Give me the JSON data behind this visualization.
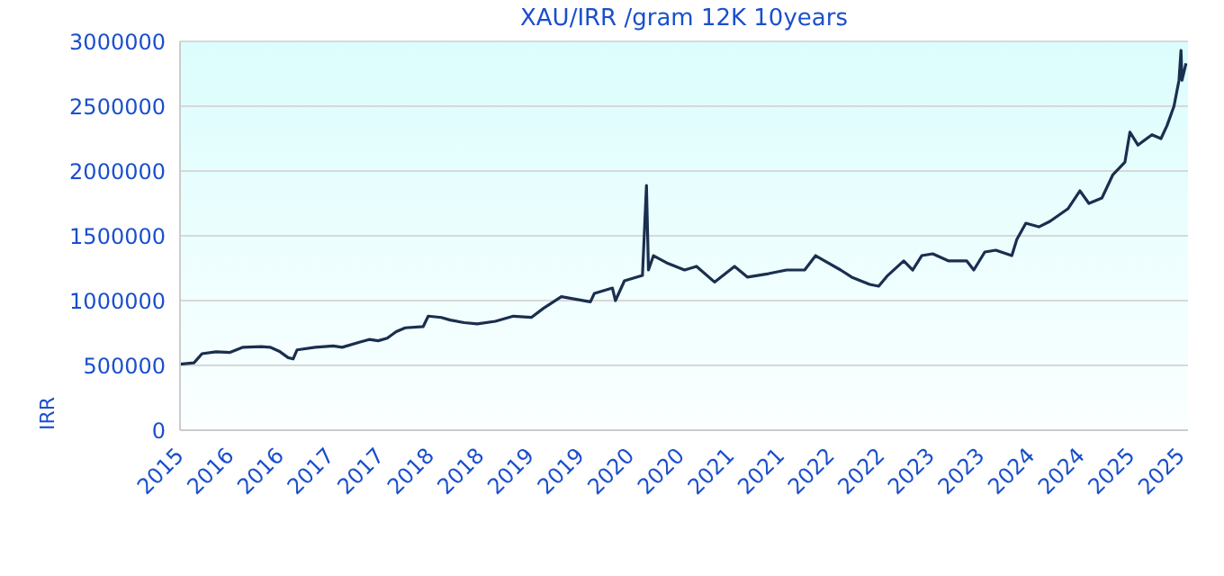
{
  "chart_data": {
    "type": "line",
    "title": "XAU/IRR /gram 12K 10years",
    "ylabel": "IRR",
    "x": [
      2015.5,
      2015.64,
      2015.72,
      2015.86,
      2016.0,
      2016.13,
      2016.31,
      2016.4,
      2016.49,
      2016.58,
      2016.63,
      2016.67,
      2016.85,
      2017.03,
      2017.12,
      2017.3,
      2017.39,
      2017.48,
      2017.57,
      2017.66,
      2017.75,
      2017.93,
      2017.98,
      2018.11,
      2018.2,
      2018.34,
      2018.47,
      2018.65,
      2018.83,
      2019.01,
      2019.13,
      2019.31,
      2019.46,
      2019.6,
      2019.64,
      2019.82,
      2019.85,
      2019.94,
      2020.12,
      2020.16,
      2020.18,
      2020.23,
      2020.36,
      2020.54,
      2020.66,
      2020.84,
      2021.04,
      2021.17,
      2021.38,
      2021.56,
      2021.74,
      2021.85,
      2021.94,
      2022.1,
      2022.21,
      2022.39,
      2022.48,
      2022.57,
      2022.73,
      2022.82,
      2022.91,
      2023.02,
      2023.18,
      2023.36,
      2023.43,
      2023.54,
      2023.65,
      2023.81,
      2023.86,
      2023.95,
      2024.08,
      2024.19,
      2024.37,
      2024.49,
      2024.58,
      2024.71,
      2024.82,
      2024.94,
      2024.99,
      2025.07,
      2025.21,
      2025.3,
      2025.36,
      2025.43,
      2025.48,
      2025.5,
      2025.51,
      2025.55
    ],
    "series": [
      {
        "color": "#1a2e4f",
        "values": [
          510000,
          520000,
          590000,
          605000,
          600000,
          640000,
          645000,
          640000,
          610000,
          560000,
          550000,
          620000,
          640000,
          650000,
          640000,
          680000,
          700000,
          690000,
          710000,
          760000,
          790000,
          800000,
          880000,
          870000,
          850000,
          830000,
          820000,
          840000,
          880000,
          870000,
          940000,
          1030000,
          1010000,
          990000,
          1056000,
          1097000,
          1000000,
          1153000,
          1194000,
          1889000,
          1236000,
          1347000,
          1292000,
          1236000,
          1264000,
          1143000,
          1264000,
          1181000,
          1208000,
          1236000,
          1236000,
          1347000,
          1306000,
          1236000,
          1181000,
          1125000,
          1111000,
          1194000,
          1306000,
          1236000,
          1347000,
          1361000,
          1306000,
          1306000,
          1236000,
          1375000,
          1389000,
          1347000,
          1472000,
          1597000,
          1569000,
          1611000,
          1708000,
          1847000,
          1750000,
          1792000,
          1972000,
          2069000,
          2300000,
          2200000,
          2280000,
          2250000,
          2350000,
          2500000,
          2700000,
          2930000,
          2700000,
          2830000
        ]
      }
    ],
    "xlim": [
      2015.5,
      2025.57
    ],
    "xticks": [
      {
        "value": 2015.5,
        "label": "2015"
      },
      {
        "value": 2016.0,
        "label": "2016"
      },
      {
        "value": 2016.5,
        "label": "2016"
      },
      {
        "value": 2017.0,
        "label": "2017"
      },
      {
        "value": 2017.5,
        "label": "2017"
      },
      {
        "value": 2018.0,
        "label": "2018"
      },
      {
        "value": 2018.5,
        "label": "2018"
      },
      {
        "value": 2019.0,
        "label": "2019"
      },
      {
        "value": 2019.5,
        "label": "2019"
      },
      {
        "value": 2020.0,
        "label": "2020"
      },
      {
        "value": 2020.5,
        "label": "2020"
      },
      {
        "value": 2021.0,
        "label": "2021"
      },
      {
        "value": 2021.5,
        "label": "2021"
      },
      {
        "value": 2022.0,
        "label": "2022"
      },
      {
        "value": 2022.5,
        "label": "2022"
      },
      {
        "value": 2023.0,
        "label": "2023"
      },
      {
        "value": 2023.5,
        "label": "2023"
      },
      {
        "value": 2024.0,
        "label": "2024"
      },
      {
        "value": 2024.5,
        "label": "2024"
      },
      {
        "value": 2025.0,
        "label": "2025"
      },
      {
        "value": 2025.5,
        "label": "2025"
      }
    ],
    "ylim": [
      0,
      3000000
    ],
    "yticks": [
      0,
      500000,
      1000000,
      1500000,
      2000000,
      2500000,
      3000000
    ],
    "grid": "y",
    "legend": false,
    "marker": "none",
    "line_style": "solid"
  }
}
